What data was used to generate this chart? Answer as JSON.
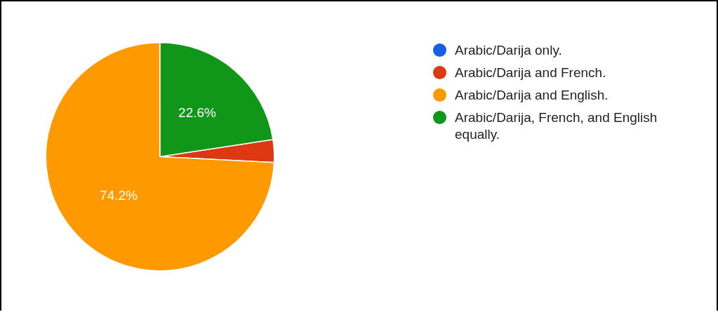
{
  "chart_data": {
    "type": "pie",
    "categories": [
      "Arabic/Darija only.",
      "Arabic/Darija and French.",
      "Arabic/Darija and English.",
      "Arabic/Darija, French, and English equally."
    ],
    "values": [
      0,
      3.2,
      74.2,
      22.6
    ],
    "colors": [
      "#1a5ee6",
      "#dc3912",
      "#ff9900",
      "#109618"
    ],
    "value_labels": [
      null,
      null,
      "74.2%",
      "22.6%"
    ],
    "legend": "right"
  }
}
